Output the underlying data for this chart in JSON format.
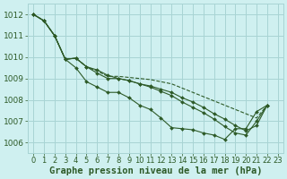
{
  "bg_color": "#cff0f0",
  "grid_color": "#a8d4d4",
  "line_color": "#2d5a27",
  "xlabel": "Graphe pression niveau de la mer (hPa)",
  "xlim": [
    -0.5,
    23.5
  ],
  "ylim": [
    1005.5,
    1012.5
  ],
  "yticks": [
    1006,
    1007,
    1008,
    1009,
    1010,
    1011,
    1012
  ],
  "xticks": [
    0,
    1,
    2,
    3,
    4,
    5,
    6,
    7,
    8,
    9,
    10,
    11,
    12,
    13,
    14,
    15,
    16,
    17,
    18,
    19,
    20,
    21,
    22,
    23
  ],
  "series": [
    {
      "x": [
        0,
        1,
        2,
        3,
        4,
        5,
        6,
        7,
        8,
        9,
        10,
        11,
        12,
        13,
        14,
        15,
        16,
        17,
        18,
        19,
        20,
        21,
        22
      ],
      "y": [
        1012.0,
        1011.7,
        1011.0,
        1009.9,
        1009.5,
        1008.85,
        1008.6,
        1008.35,
        1008.35,
        1008.1,
        1007.75,
        1007.55,
        1007.15,
        1006.7,
        1006.65,
        1006.6,
        1006.45,
        1006.35,
        1006.15,
        1006.65,
        1006.65,
        1007.45,
        1007.75
      ],
      "linestyle": "-",
      "has_markers": true
    },
    {
      "x": [
        0,
        1,
        2,
        3,
        4,
        5,
        6,
        7,
        8,
        9,
        10,
        11,
        12,
        13,
        14,
        15,
        16,
        17,
        18,
        19,
        20,
        21,
        22
      ],
      "y": [
        1012.0,
        1011.7,
        1011.0,
        1009.9,
        1009.95,
        1009.55,
        1009.35,
        1009.1,
        1009.1,
        1009.05,
        1009.0,
        1008.95,
        1008.85,
        1008.75,
        1008.55,
        1008.35,
        1008.15,
        1007.95,
        1007.75,
        1007.55,
        1007.35,
        1007.15,
        1007.75
      ],
      "linestyle": "--",
      "has_markers": false
    },
    {
      "x": [
        0,
        1,
        2,
        3,
        4,
        5,
        6,
        7,
        8,
        9,
        10,
        11,
        12,
        13,
        14,
        15,
        16,
        17,
        18,
        19,
        20,
        21,
        22
      ],
      "y": [
        1012.0,
        1011.7,
        1011.0,
        1009.9,
        1009.95,
        1009.55,
        1009.25,
        1009.0,
        1009.0,
        1008.9,
        1008.75,
        1008.65,
        1008.5,
        1008.35,
        1008.1,
        1007.9,
        1007.65,
        1007.35,
        1007.1,
        1006.8,
        1006.55,
        1006.8,
        1007.75
      ],
      "linestyle": "-",
      "has_markers": true
    },
    {
      "x": [
        0,
        1,
        2,
        3,
        4,
        5,
        6,
        7,
        8,
        9,
        10,
        11,
        12,
        13,
        14,
        15,
        16,
        17,
        18,
        19,
        20,
        21,
        22
      ],
      "y": [
        1012.0,
        1011.7,
        1011.0,
        1009.9,
        1009.95,
        1009.55,
        1009.4,
        1009.15,
        1009.0,
        1008.9,
        1008.75,
        1008.6,
        1008.4,
        1008.2,
        1007.9,
        1007.65,
        1007.4,
        1007.1,
        1006.75,
        1006.45,
        1006.35,
        1007.0,
        1007.75
      ],
      "linestyle": "-",
      "has_markers": true
    }
  ]
}
